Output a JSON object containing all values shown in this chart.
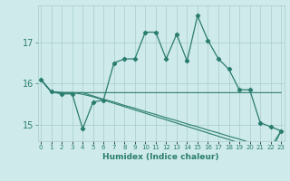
{
  "xlabel": "Humidex (Indice chaleur)",
  "x_values": [
    0,
    1,
    2,
    3,
    4,
    5,
    6,
    7,
    8,
    9,
    10,
    11,
    12,
    13,
    14,
    15,
    16,
    17,
    18,
    19,
    20,
    21,
    22,
    23
  ],
  "line1_y": [
    16.1,
    15.8,
    15.75,
    15.75,
    14.9,
    15.55,
    15.6,
    16.5,
    16.6,
    16.6,
    17.25,
    17.25,
    16.6,
    17.2,
    16.55,
    17.65,
    17.05,
    16.6,
    16.35,
    15.85,
    15.85,
    15.05,
    14.95,
    14.85
  ],
  "line2_y": [
    16.1,
    15.8,
    15.78,
    15.78,
    15.78,
    15.78,
    15.78,
    15.78,
    15.78,
    15.78,
    15.78,
    15.78,
    15.78,
    15.78,
    15.78,
    15.78,
    15.78,
    15.78,
    15.78,
    15.78,
    15.78,
    15.78,
    15.78,
    15.78
  ],
  "line3_y": [
    16.1,
    15.8,
    15.78,
    15.78,
    15.78,
    15.7,
    15.62,
    15.55,
    15.47,
    15.4,
    15.32,
    15.25,
    15.17,
    15.1,
    15.02,
    14.95,
    14.87,
    14.8,
    14.72,
    14.65,
    14.57,
    14.5,
    14.45,
    14.85
  ],
  "line4_y": [
    16.1,
    15.8,
    15.78,
    15.78,
    15.74,
    15.68,
    15.6,
    15.52,
    15.44,
    15.36,
    15.28,
    15.2,
    15.12,
    15.04,
    14.96,
    14.88,
    14.8,
    14.72,
    14.64,
    14.56,
    14.48,
    14.4,
    14.32,
    14.85
  ],
  "line_color": "#2a7d6e",
  "bg_color": "#ceeaea",
  "grid_color": "#a8cccc",
  "ylim": [
    14.6,
    17.9
  ],
  "yticks": [
    15,
    16,
    17
  ],
  "xlim": [
    -0.3,
    23.3
  ]
}
